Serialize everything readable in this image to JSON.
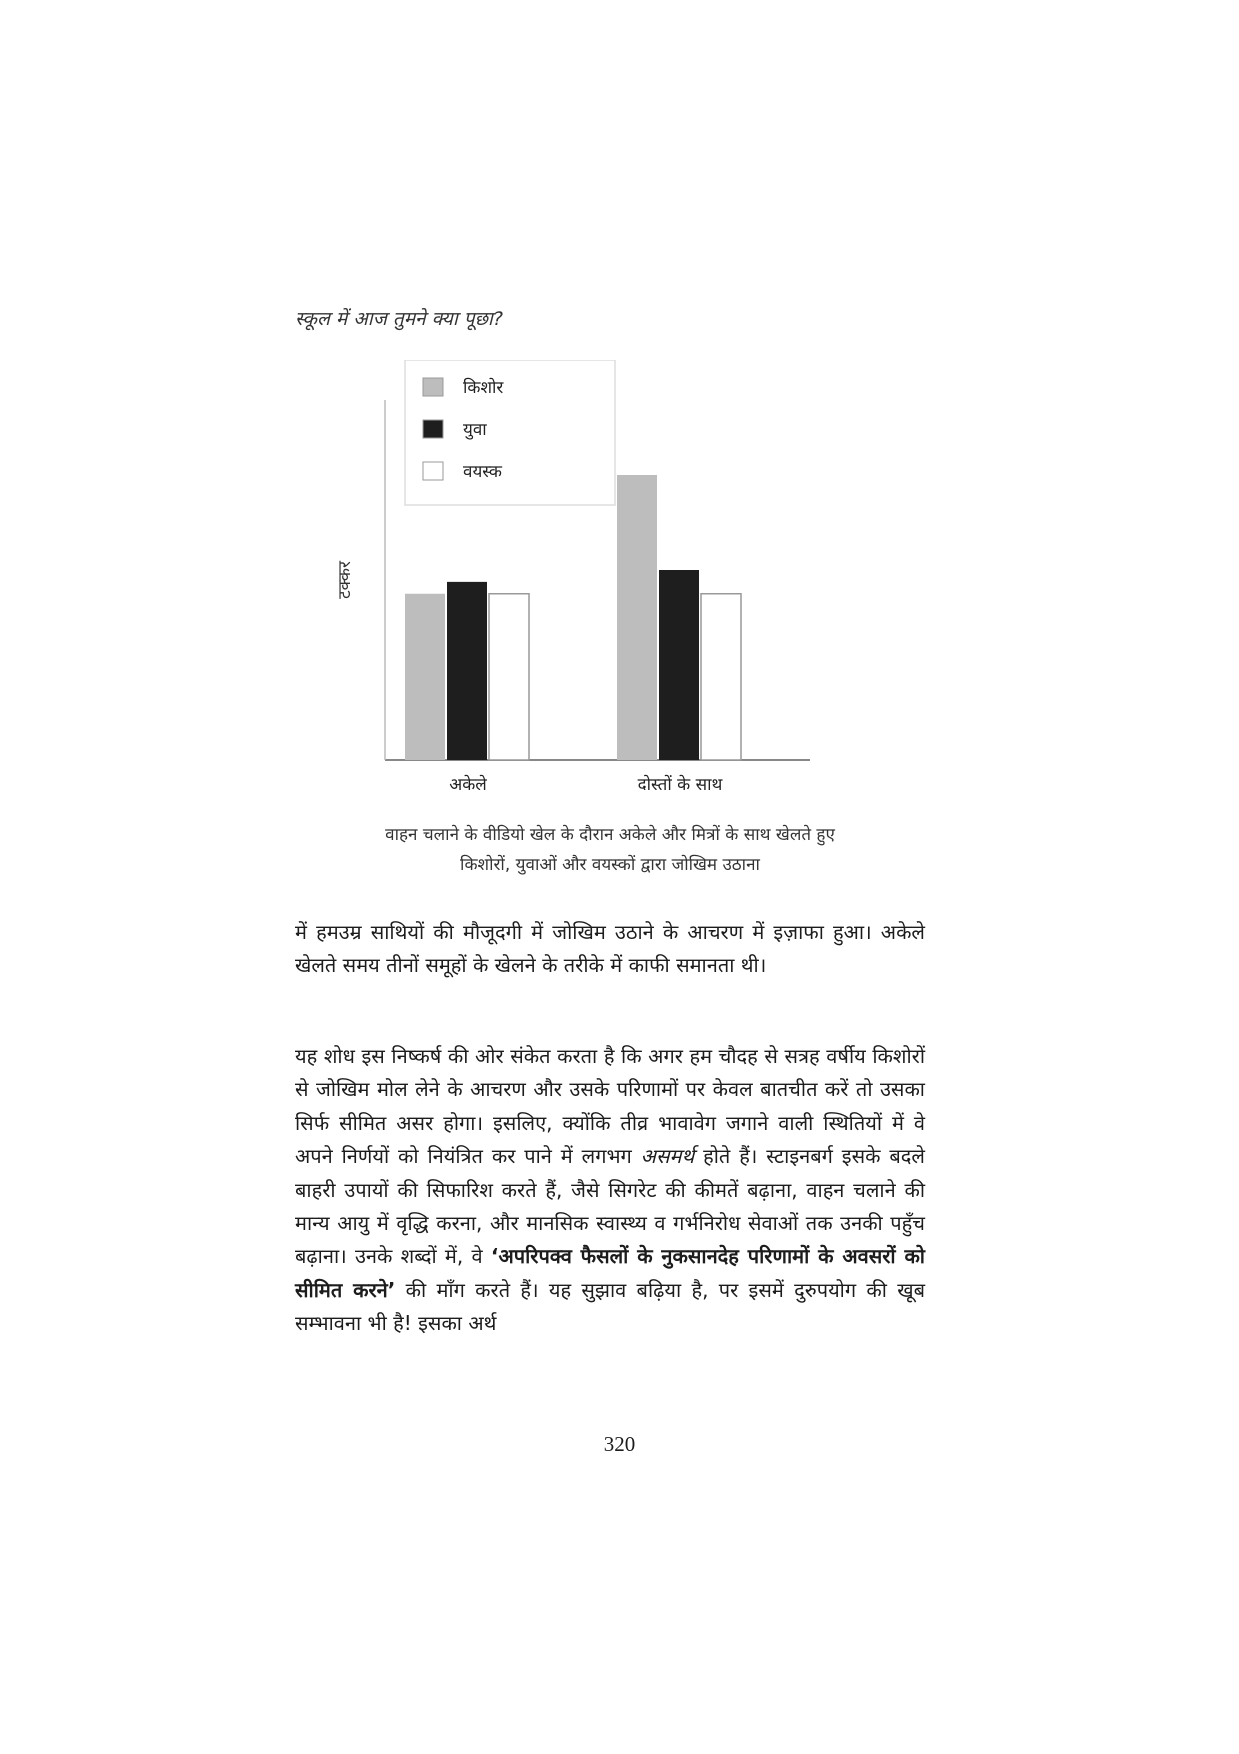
{
  "header": {
    "running_title": "स्कूल में आज तुमने क्या पूछा?"
  },
  "chart_data": {
    "type": "bar",
    "categories": [
      "अकेले",
      "दोस्तों के साथ"
    ],
    "series": [
      {
        "name": "किशोर",
        "values": [
          1.4,
          2.4
        ]
      },
      {
        "name": "युवा",
        "values": [
          1.5,
          1.6
        ]
      },
      {
        "name": "वयस्क",
        "values": [
          1.4,
          1.4
        ]
      }
    ],
    "xlabel": "",
    "ylabel": "टक्कर",
    "ylim": [
      0,
      3.2
    ],
    "grid": false,
    "legend_position": "top-left",
    "colors": {
      "किशोर": "#bdbdbd",
      "युवा": "#1e1e1e",
      "वयस्क": "#ffffff"
    }
  },
  "caption": {
    "line1": "वाहन चलाने के वीडियो खेल के दौरान अकेले और मित्रों के साथ खेलते हुए",
    "line2": "किशोरों, युवाओं और वयस्कों द्वारा जोखिम उठाना"
  },
  "body": {
    "para1": "में हमउम्र साथियों की मौजूदगी में जोखिम उठाने के आचरण में इज़ाफा हुआ। अकेले खेलते समय तीनों समूहों के खेलने के तरीके में काफी समानता थी।",
    "para2_part1": "यह शोध इस निष्कर्ष की ओर संकेत करता है कि अगर हम चौदह से सत्रह वर्षीय किशोरों से जोखिम मोल लेने के आचरण और उसके परिणामों पर केवल बातचीत करें तो उसका सिर्फ सीमित असर होगा। इसलिए, क्योंकि तीव्र भावावेग जगाने वाली स्थितियों में वे अपने निर्णयों को नियंत्रित कर पाने में लगभग ",
    "para2_italic": "असमर्थ",
    "para2_part2": " होते हैं। स्टाइनबर्ग इसके बदले बाहरी उपायों की सिफारिश करते हैं, जैसे सिगरेट की कीमतें बढ़ाना, वाहन चलाने की मान्य आयु में वृद्धि करना, और मानसिक स्वास्थ्य व गर्भनिरोध सेवाओं तक उनकी पहुँच बढ़ाना। उनके शब्दों में, वे ",
    "para2_bold": "‘अपरिपक्व फैसलों के नुकसानदेह परिणामों के अवसरों को सीमित करने’",
    "para2_part3": " की माँग करते हैं। यह सुझाव बढ़िया है, पर इसमें दुरुपयोग की खूब सम्भावना भी है! इसका अर्थ"
  },
  "footer": {
    "page_number": "320"
  }
}
